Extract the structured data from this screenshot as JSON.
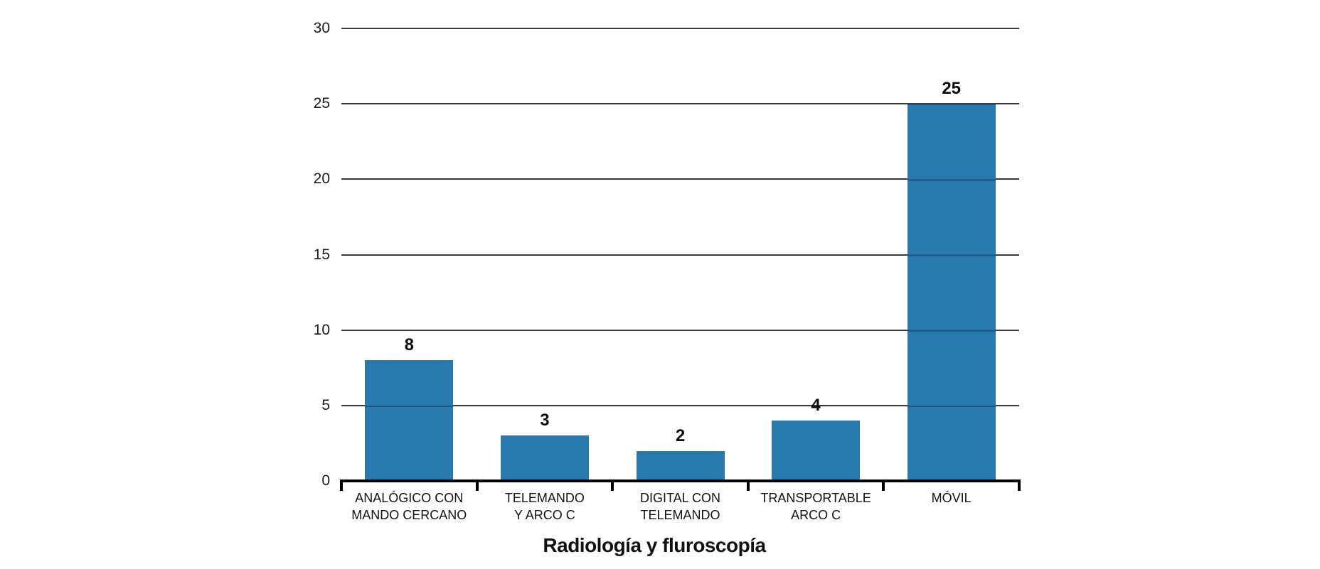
{
  "chart_data": {
    "type": "bar",
    "title": "Radiología y fluroscopía",
    "categories": [
      "ANALÓGICO CON\nMANDO CERCANO",
      "TELEMANDO\nY ARCO C",
      "DIGITAL CON\nTELEMANDO",
      "TRANSPORTABLE\nARCO C",
      "MÓVIL"
    ],
    "values": [
      8,
      3,
      2,
      4,
      25
    ],
    "value_labels": [
      "8",
      "3",
      "2",
      "4",
      "25"
    ],
    "xlabel": "",
    "ylabel": "",
    "ylim": [
      0,
      30
    ],
    "yticks": [
      0,
      5,
      10,
      15,
      20,
      25,
      30
    ],
    "grid": "horizontal",
    "legend_position": "none",
    "colors": {
      "bar": "#2879ae",
      "gridline": "#3a3a3a",
      "axis": "#000000",
      "text": "#1a1a1a"
    }
  }
}
